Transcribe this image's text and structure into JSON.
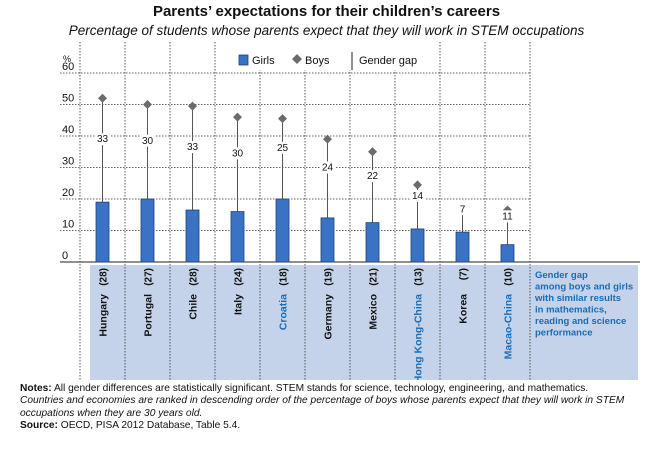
{
  "page": {
    "title": "Parents’ expectations for their children’s careers",
    "subtitle": "Percentage of students whose parents expect that they will work in STEM occupations"
  },
  "chart_data": {
    "type": "bar",
    "title": "Parents’ expectations for their children’s careers",
    "subtitle": "Percentage of students whose parents expect that they will work in STEM occupations",
    "ylabel": "%",
    "ylim": [
      0,
      60
    ],
    "yticks": [
      0,
      10,
      20,
      30,
      40,
      50,
      60
    ],
    "categories": [
      "Hungary",
      "Portugal",
      "Chile",
      "Italy",
      "Croatia",
      "Germany",
      "Mexico",
      "Hong Kong-China",
      "Korea",
      "Macao-China"
    ],
    "highlighted": [
      "Croatia",
      "Hong Kong-China",
      "Macao-China"
    ],
    "series": [
      {
        "name": "Girls",
        "marker": "bar",
        "values": [
          19,
          20,
          16.5,
          16,
          20,
          14,
          12.5,
          10.5,
          9.5,
          5.5
        ]
      },
      {
        "name": "Boys",
        "marker": "diamond",
        "values": [
          52,
          50,
          49.5,
          46,
          45.5,
          39,
          35,
          24.5,
          17,
          16.5
        ]
      }
    ],
    "gender_gap_labels": [
      "33",
      "30",
      "33",
      "30",
      "25",
      "24",
      "22",
      "14",
      "7",
      "11"
    ],
    "gap_panel_labels": [
      "(28)",
      "(27)",
      "(28)",
      "(24)",
      "(18)",
      "(19)",
      "(21)",
      "(13)",
      "(7)",
      "(10)"
    ],
    "legend": {
      "items": [
        "Girls",
        "Boys",
        "Gender gap"
      ],
      "placement": "top"
    },
    "panel_caption": "Gender gap among boys and girls with similar results in mathematics, reading and science performance",
    "panel_caption_lines": [
      "Gender gap",
      "among boys and girls",
      "with similar results",
      "in mathematics,",
      "reading and science",
      "performance"
    ],
    "colors": {
      "girls_bar": "#3a73c4",
      "girls_bar_edge": "#1c3f7a",
      "boys_marker": "#6b6b6b",
      "gap_line": "#555555",
      "panel": "#c5d3ea",
      "highlight_text": "#1a6bb5",
      "panel_caption": "#1a6bb5"
    }
  },
  "notes": {
    "label": "Notes:",
    "text1": " All gender differences are statistically significant. STEM stands for science, technology, engineering, and mathematics.",
    "text2": "Countries and economies are ranked in descending order of the percentage of boys whose parents expect that they will work in STEM occupations when they are 30 years old.",
    "source_label": "Source:",
    "source_text": " OECD, PISA 2012 Database, Table 5.4."
  }
}
